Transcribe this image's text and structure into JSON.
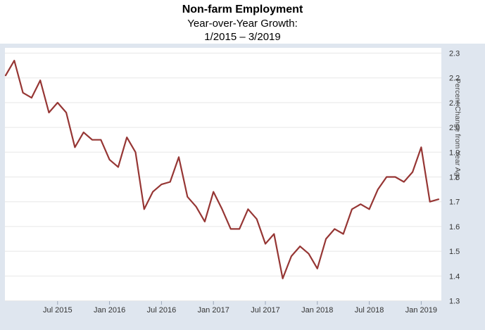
{
  "title": {
    "line1": "Non-farm Employment",
    "line2": "Year-over-Year Growth:",
    "line3": "1/2015 – 3/2019"
  },
  "y_axis": {
    "label": "Percent Change from Year Ago",
    "ticks": [
      "2.3",
      "2.2",
      "2.1",
      "2.0",
      "1.9",
      "1.8",
      "1.7",
      "1.6",
      "1.5",
      "1.4",
      "1.3"
    ]
  },
  "x_axis": {
    "ticks": [
      {
        "label": "Jul 2015",
        "month_index": 6
      },
      {
        "label": "Jan 2016",
        "month_index": 12
      },
      {
        "label": "Jul 2016",
        "month_index": 18
      },
      {
        "label": "Jan 2017",
        "month_index": 24
      },
      {
        "label": "Jul 2017",
        "month_index": 30
      },
      {
        "label": "Jan 2018",
        "month_index": 36
      },
      {
        "label": "Jul 2018",
        "month_index": 42
      },
      {
        "label": "Jan 2019",
        "month_index": 48
      }
    ]
  },
  "chart_data": {
    "type": "line",
    "title": "Non-farm Employment Year-over-Year Growth: 1/2015 - 3/2019",
    "ylabel": "Percent Change from Year Ago",
    "xlabel": "",
    "ylim": [
      1.3,
      2.3
    ],
    "grid": "horizontal",
    "legend": "none",
    "line_color": "#963634",
    "x": [
      "Jan 2015",
      "Feb 2015",
      "Mar 2015",
      "Apr 2015",
      "May 2015",
      "Jun 2015",
      "Jul 2015",
      "Aug 2015",
      "Sep 2015",
      "Oct 2015",
      "Nov 2015",
      "Dec 2015",
      "Jan 2016",
      "Feb 2016",
      "Mar 2016",
      "Apr 2016",
      "May 2016",
      "Jun 2016",
      "Jul 2016",
      "Aug 2016",
      "Sep 2016",
      "Oct 2016",
      "Nov 2016",
      "Dec 2016",
      "Jan 2017",
      "Feb 2017",
      "Mar 2017",
      "Apr 2017",
      "May 2017",
      "Jun 2017",
      "Jul 2017",
      "Aug 2017",
      "Sep 2017",
      "Oct 2017",
      "Nov 2017",
      "Dec 2017",
      "Jan 2018",
      "Feb 2018",
      "Mar 2018",
      "Apr 2018",
      "May 2018",
      "Jun 2018",
      "Jul 2018",
      "Aug 2018",
      "Sep 2018",
      "Oct 2018",
      "Nov 2018",
      "Dec 2018",
      "Jan 2019",
      "Feb 2019",
      "Mar 2019"
    ],
    "values": [
      2.21,
      2.27,
      2.14,
      2.12,
      2.19,
      2.06,
      2.1,
      2.06,
      1.92,
      1.98,
      1.95,
      1.95,
      1.87,
      1.84,
      1.96,
      1.9,
      1.67,
      1.74,
      1.77,
      1.78,
      1.88,
      1.72,
      1.68,
      1.62,
      1.74,
      1.67,
      1.59,
      1.59,
      1.67,
      1.63,
      1.53,
      1.57,
      1.39,
      1.48,
      1.52,
      1.49,
      1.43,
      1.55,
      1.59,
      1.57,
      1.67,
      1.69,
      1.67,
      1.75,
      1.8,
      1.8,
      1.78,
      1.82,
      1.92,
      1.7,
      1.71
    ]
  },
  "colors": {
    "panel_background": "#dfe6ef",
    "plot_background": "#ffffff",
    "gridline": "#e7e7e7",
    "tick_mark": "#9aa5b8",
    "axis_text": "#333333",
    "line": "#963634"
  }
}
